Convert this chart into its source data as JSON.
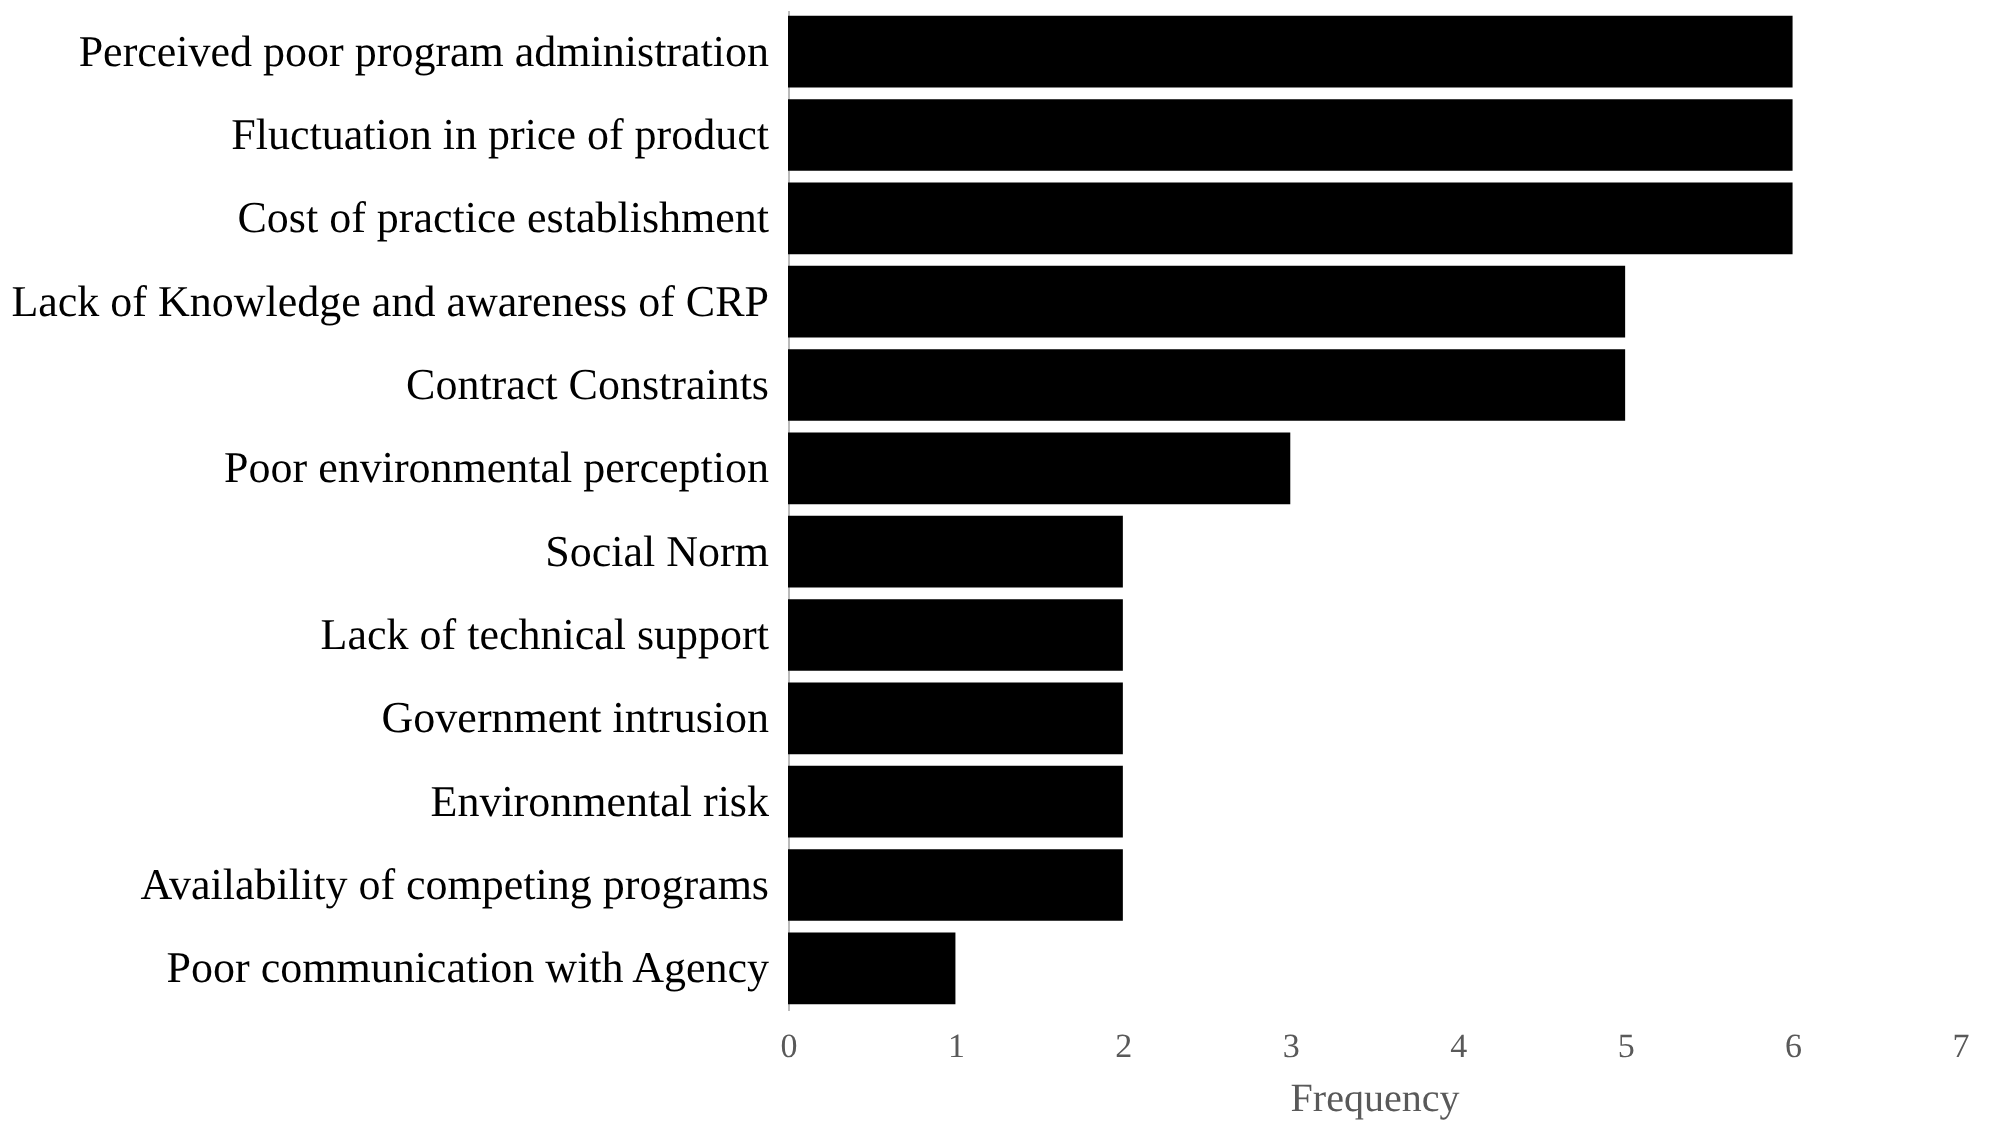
{
  "chart_data": {
    "type": "bar",
    "orientation": "horizontal",
    "xlabel": "Frequency",
    "categories": [
      "Perceived poor program administration",
      "Fluctuation in price of product",
      "Cost of practice establishment",
      "Lack of Knowledge and awareness of CRP",
      "Contract Constraints",
      "Poor environmental perception",
      "Social Norm",
      "Lack of technical support",
      "Government intrusion",
      "Environmental risk",
      "Availability of competing programs",
      "Poor communication with Agency"
    ],
    "values": [
      6,
      6,
      6,
      5,
      5,
      3,
      2,
      2,
      2,
      2,
      2,
      1
    ],
    "color": "#000000",
    "xlim": [
      0,
      7
    ],
    "xticks": [
      0,
      1,
      2,
      3,
      4,
      5,
      6,
      7
    ],
    "grid": false
  }
}
